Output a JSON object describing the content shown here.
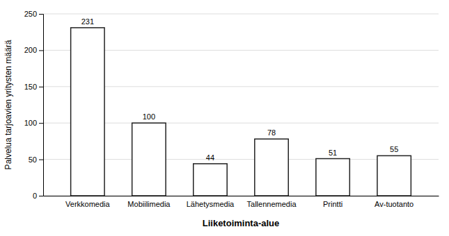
{
  "chart_data": {
    "type": "bar",
    "categories": [
      "Verkkomedia",
      "Mobiilimedia",
      "Lähetysmedia",
      "Tallennemedia",
      "Printti",
      "Av-tuotanto"
    ],
    "values": [
      231,
      100,
      44,
      78,
      51,
      55
    ],
    "color": "#ffffff",
    "xlabel": "Liiketoiminta-alue",
    "ylabel": "Palvelua tarjoavien yritysten määrä",
    "ylim": [
      0,
      250
    ],
    "yticks": [
      0,
      50,
      100,
      150,
      200,
      250
    ],
    "grid": true,
    "data_labels": true
  }
}
